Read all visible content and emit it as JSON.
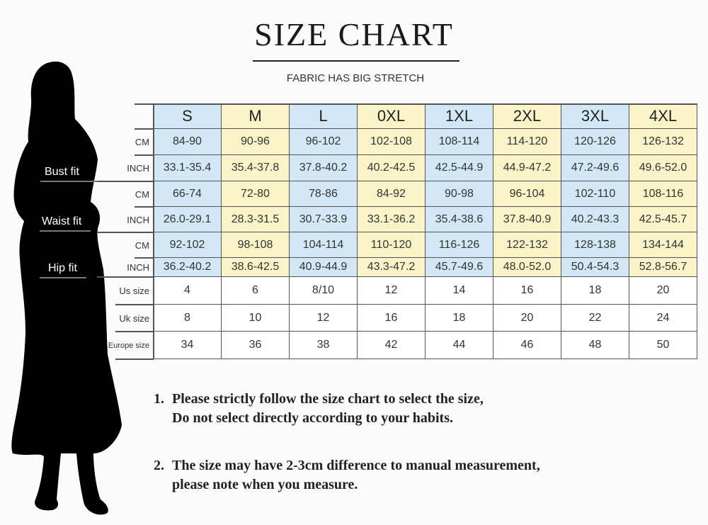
{
  "header": {
    "title": "SIZE CHART",
    "subtitle": "FABRIC HAS BIG STRETCH"
  },
  "figure": {
    "fit_labels": [
      "Bust fit",
      "Waist fit",
      "Hip fit"
    ]
  },
  "colors": {
    "blue_cell": "#d3e8f6",
    "yellow_cell": "#fbf4c9",
    "silhouette": "#000000"
  },
  "table": {
    "sizes": [
      "S",
      "M",
      "L",
      "0XL",
      "1XL",
      "2XL",
      "3XL",
      "4XL"
    ],
    "rows": [
      {
        "label": "CM",
        "group": "Bust fit",
        "values": [
          "84-90",
          "90-96",
          "96-102",
          "102-108",
          "108-114",
          "114-120",
          "120-126",
          "126-132"
        ]
      },
      {
        "label": "INCH",
        "group": "Bust fit",
        "values": [
          "33.1-35.4",
          "35.4-37.8",
          "37.8-40.2",
          "40.2-42.5",
          "42.5-44.9",
          "44.9-47.2",
          "47.2-49.6",
          "49.6-52.0"
        ]
      },
      {
        "label": "CM",
        "group": "Waist fit",
        "values": [
          "66-74",
          "72-80",
          "78-86",
          "84-92",
          "90-98",
          "96-104",
          "102-110",
          "108-116"
        ]
      },
      {
        "label": "INCH",
        "group": "Waist fit",
        "values": [
          "26.0-29.1",
          "28.3-31.5",
          "30.7-33.9",
          "33.1-36.2",
          "35.4-38.6",
          "37.8-40.9",
          "40.2-43.3",
          "42.5-45.7"
        ]
      },
      {
        "label": "CM",
        "group": "Hip fit",
        "values": [
          "92-102",
          "98-108",
          "104-114",
          "110-120",
          "116-126",
          "122-132",
          "128-138",
          "134-144"
        ]
      },
      {
        "label": "INCH",
        "group": "Hip fit",
        "values": [
          "36.2-40.2",
          "38.6-42.5",
          "40.9-44.9",
          "43.3-47.2",
          "45.7-49.6",
          "48.0-52.0",
          "50.4-54.3",
          "52.8-56.7"
        ]
      },
      {
        "label": "Us size",
        "values": [
          "4",
          "6",
          "8/10",
          "12",
          "14",
          "16",
          "18",
          "20"
        ]
      },
      {
        "label": "Uk size",
        "values": [
          "8",
          "10",
          "12",
          "16",
          "18",
          "20",
          "22",
          "24"
        ]
      },
      {
        "label": "Europe size",
        "values": [
          "34",
          "36",
          "38",
          "42",
          "44",
          "46",
          "48",
          "50"
        ]
      }
    ]
  },
  "notes": [
    {
      "number": "1.",
      "line1": "Please strictly follow the size chart to select the size,",
      "line2": "Do not select directly according to your habits."
    },
    {
      "number": "2.",
      "line1": "The size may have 2-3cm difference  to manual measurement,",
      "line2": "please note when you measure."
    }
  ]
}
